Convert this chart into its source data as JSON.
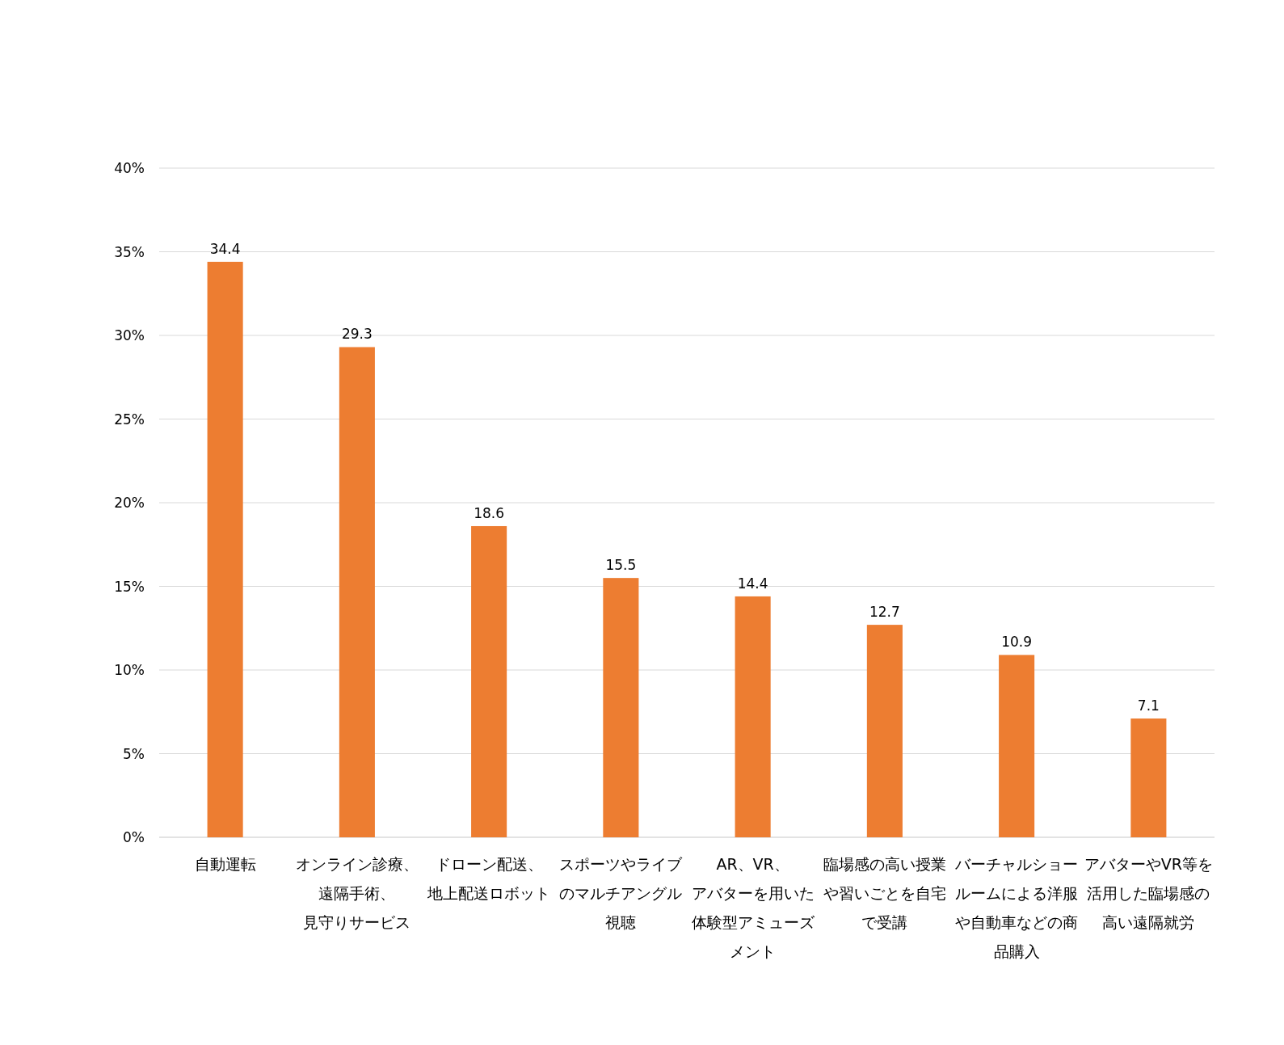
{
  "chart_data": {
    "type": "bar",
    "categories": [
      "自動運転",
      "オンライン診療、遠隔手術、見守りサービス",
      "ドローン配送、地上配送ロボット",
      "スポーツやライブのマルチアングル視聴",
      "AR、VR、アバターを用いた体験型アミューズメント",
      "臨場感の高い授業や習いごとを自宅で受講",
      "バーチャルショールームによる洋服や自動車などの商品購入",
      "アバターやVR等を活用した臨場感の高い遠隔就労"
    ],
    "series": [
      {
        "color": "#ed7d31",
        "values": [
          34.4,
          29.3,
          18.6,
          15.5,
          14.4,
          12.7,
          10.9,
          7.1
        ]
      }
    ],
    "ylim": [
      0,
      40
    ],
    "yticks": [
      {
        "value": 0,
        "label": "0%"
      },
      {
        "value": 5,
        "label": "5%"
      },
      {
        "value": 10,
        "label": "10%"
      },
      {
        "value": 15,
        "label": "15%"
      },
      {
        "value": 20,
        "label": "20%"
      },
      {
        "value": 25,
        "label": "25%"
      },
      {
        "value": 30,
        "label": "30%"
      },
      {
        "value": 35,
        "label": "35%"
      },
      {
        "value": 40,
        "label": "40%"
      }
    ],
    "grid": "y",
    "data_labels": true
  }
}
